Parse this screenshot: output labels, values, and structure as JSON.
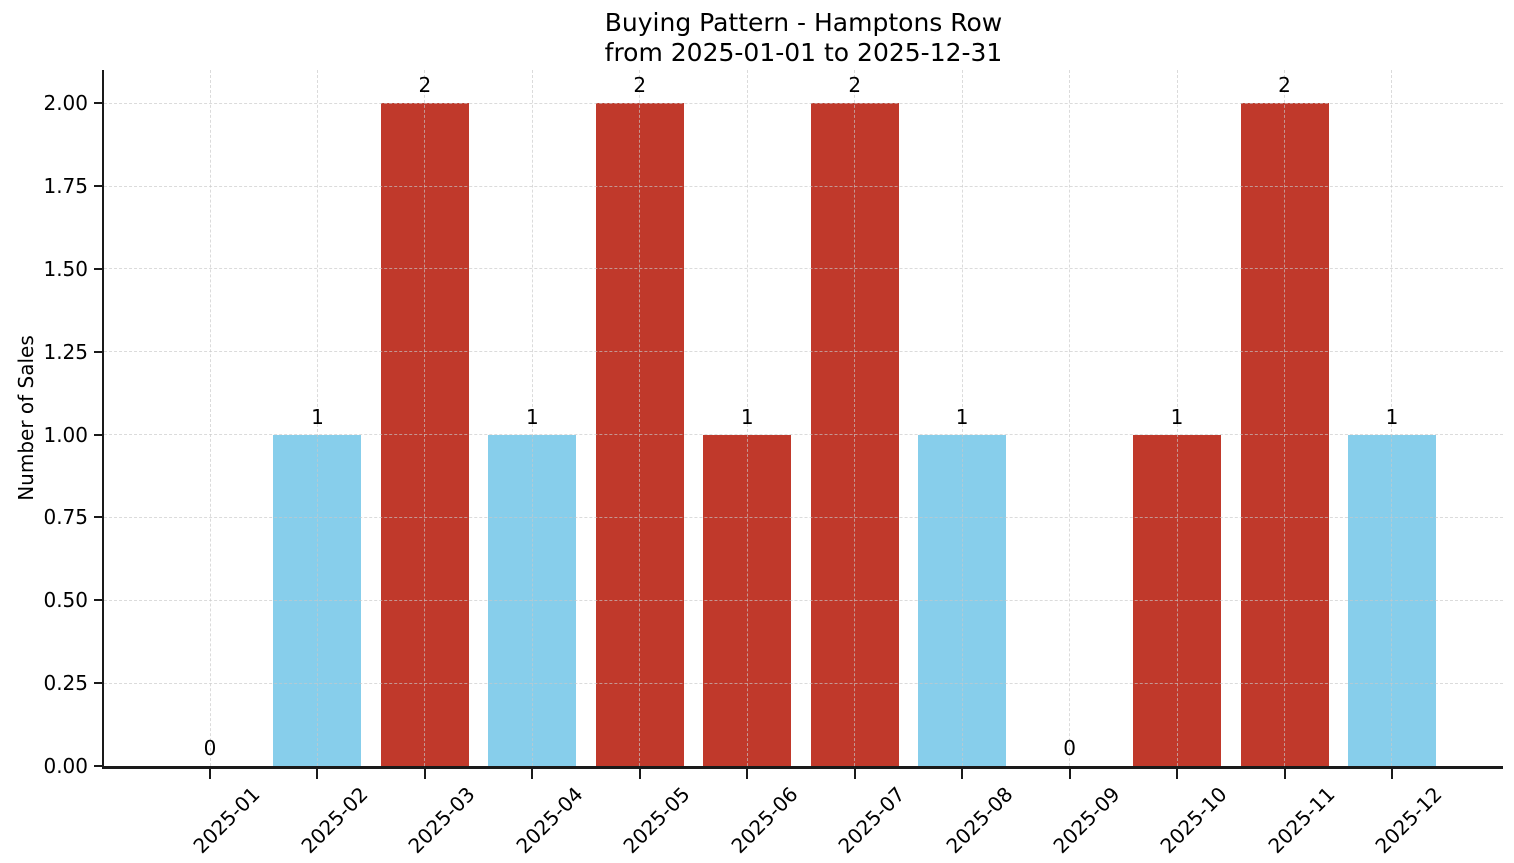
{
  "chart_data": {
    "type": "bar",
    "title": "Buying Pattern - Hamptons Row\nfrom 2025-01-01 to 2025-12-31",
    "title_line1": "Buying Pattern - Hamptons Row",
    "title_line2": "from 2025-01-01 to 2025-12-31",
    "xlabel": "",
    "ylabel": "Number of Sales",
    "categories": [
      "2025-01",
      "2025-02",
      "2025-03",
      "2025-04",
      "2025-05",
      "2025-06",
      "2025-07",
      "2025-08",
      "2025-09",
      "2025-10",
      "2025-11",
      "2025-12"
    ],
    "values": [
      0,
      1,
      2,
      1,
      2,
      1,
      2,
      1,
      0,
      1,
      2,
      1
    ],
    "bar_labels": [
      "0",
      "1",
      "2",
      "1",
      "2",
      "1",
      "2",
      "1",
      "0",
      "1",
      "2",
      "1"
    ],
    "bar_colors": [
      null,
      "#87ceeb",
      "#c0392b",
      "#87ceeb",
      "#c0392b",
      "#c0392b",
      "#c0392b",
      "#87ceeb",
      null,
      "#c0392b",
      "#c0392b",
      "#87ceeb"
    ],
    "ylim": [
      0,
      2.1
    ],
    "yticks": [
      0,
      0.25,
      0.5,
      0.75,
      1.0,
      1.25,
      1.5,
      1.75,
      2.0
    ],
    "ytick_labels": [
      "0.00",
      "0.25",
      "0.50",
      "0.75",
      "1.00",
      "1.25",
      "1.50",
      "1.75",
      "2.00"
    ],
    "x_tick_rotation_deg": 45,
    "grid": {
      "visible": true,
      "style": "dashed",
      "axes": "both",
      "color": "#c9c9c9"
    },
    "legend": null,
    "colors": {
      "bar_red": "#c0392b",
      "bar_blue": "#87ceeb",
      "axis": "#1a1a1a",
      "background": "#ffffff"
    }
  }
}
